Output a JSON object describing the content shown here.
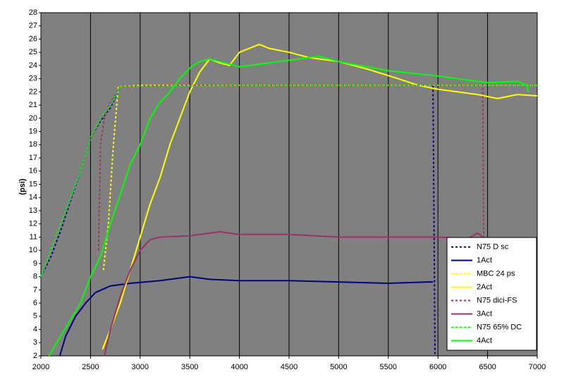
{
  "chart_data": {
    "type": "line",
    "y_label": "(psi)",
    "xlim": [
      2000,
      7000
    ],
    "xticks": [
      2000,
      2500,
      3000,
      3500,
      4000,
      4500,
      5000,
      5500,
      6000,
      6500,
      7000
    ],
    "ylim": [
      2,
      28
    ],
    "yticks": [
      2,
      3,
      4,
      5,
      6,
      7,
      8,
      9,
      10,
      11,
      12,
      13,
      14,
      15,
      16,
      17,
      18,
      19,
      20,
      21,
      22,
      23,
      24,
      25,
      26,
      27,
      28
    ],
    "grid": "x",
    "legend": "bottom-right",
    "background": "#808080",
    "series": [
      {
        "name": "N75 D sc",
        "color": "#000080",
        "style": "dotted",
        "x": [
          2000,
          2100,
          2200,
          2300,
          2400,
          2500,
          2600,
          2700,
          2800,
          3000,
          4000,
          5000,
          5950,
          5970
        ],
        "values": [
          8,
          9.5,
          11.5,
          13.8,
          16,
          18.5,
          19.8,
          20.8,
          22.4,
          22.5,
          22.5,
          22.5,
          22.5,
          2
        ]
      },
      {
        "name": "1Act",
        "color": "#000080",
        "style": "solid",
        "x": [
          2190,
          2250,
          2350,
          2450,
          2550,
          2700,
          2900,
          3200,
          3500,
          3700,
          4000,
          4500,
          5000,
          5500,
          5900,
          5950
        ],
        "values": [
          2,
          3.5,
          5,
          6,
          6.8,
          7.3,
          7.5,
          7.7,
          8,
          7.8,
          7.7,
          7.7,
          7.6,
          7.5,
          7.6,
          7.6
        ]
      },
      {
        "name": "MBC 24 ps",
        "color": "#ffff00",
        "style": "dotted",
        "x": [
          2630,
          2680,
          2730,
          2780,
          3000,
          4000,
          5000,
          6000,
          7000
        ],
        "values": [
          8.5,
          12,
          18,
          22.4,
          22.5,
          22.5,
          22.5,
          22.5,
          22.5
        ]
      },
      {
        "name": "2Act",
        "color": "#ffff00",
        "style": "solid",
        "x": [
          2620,
          2700,
          2800,
          2900,
          3000,
          3100,
          3200,
          3300,
          3400,
          3500,
          3600,
          3700,
          3800,
          3900,
          4000,
          4100,
          4200,
          4300,
          4500,
          4700,
          5000,
          5300,
          5600,
          5800,
          6000,
          6200,
          6400,
          6600,
          6800,
          7000
        ],
        "values": [
          2.5,
          4,
          6,
          8.5,
          11,
          13.5,
          15.5,
          18,
          20,
          22,
          23.5,
          24.5,
          24.2,
          24,
          25,
          25.3,
          25.6,
          25.3,
          25,
          24.6,
          24.3,
          23.7,
          23,
          22.5,
          22.2,
          22,
          21.8,
          21.5,
          21.8,
          21.7
        ]
      },
      {
        "name": "N75 dici-FS",
        "color": "#993366",
        "style": "dotted",
        "x": [
          2580,
          2600,
          2650,
          2750,
          2800,
          3500,
          4500,
          5500,
          6450,
          6460
        ],
        "values": [
          10,
          18,
          20.5,
          21.8,
          22.4,
          22.5,
          22.5,
          22.5,
          22.5,
          11
        ]
      },
      {
        "name": "3Act",
        "color": "#993366",
        "style": "solid",
        "x": [
          2640,
          2700,
          2800,
          2900,
          3000,
          3100,
          3200,
          3500,
          3800,
          4000,
          4500,
          5000,
          5500,
          6000,
          6300,
          6400,
          6450
        ],
        "values": [
          2,
          4,
          6.5,
          8.5,
          10,
          10.8,
          11,
          11.1,
          11.4,
          11.2,
          11.2,
          11,
          11,
          11,
          10.9,
          11.3,
          11
        ]
      },
      {
        "name": "N75 65% DC",
        "color": "#00ff00",
        "style": "dotted",
        "x": [
          2000,
          2200,
          2400,
          2500,
          2600,
          2700,
          2800,
          4000,
          5500,
          7000
        ],
        "values": [
          8,
          12,
          16,
          18.5,
          20,
          21,
          22.4,
          22.5,
          22.5,
          22.5
        ]
      },
      {
        "name": "4Act",
        "color": "#00ff00",
        "style": "solid",
        "x": [
          2080,
          2200,
          2400,
          2500,
          2600,
          2700,
          2800,
          2900,
          3000,
          3100,
          3200,
          3300,
          3400,
          3500,
          3600,
          3700,
          3800,
          4000,
          4300,
          4600,
          4800,
          5000,
          5500,
          6000,
          6200,
          6500,
          6800,
          6900,
          6910
        ],
        "values": [
          2,
          3.5,
          6,
          8,
          9.5,
          12,
          14.2,
          16.5,
          18,
          20,
          21.2,
          22,
          23,
          23.8,
          24.3,
          24.5,
          24.3,
          23.9,
          24.2,
          24.5,
          24.7,
          24.3,
          23.6,
          23.2,
          23,
          22.7,
          22.8,
          22.5,
          22
        ]
      }
    ]
  }
}
